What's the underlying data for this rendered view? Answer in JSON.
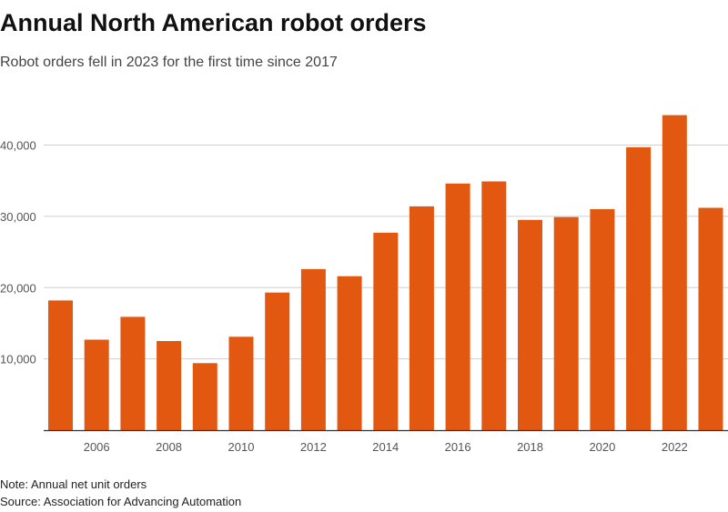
{
  "header": {
    "title": "Annual North American robot orders",
    "subtitle": "Robot orders fell in 2023 for the first time since 2017"
  },
  "footer": {
    "note": "Note: Annual net unit orders",
    "source": "Source: Association for Advancing Automation"
  },
  "colors": {
    "bar": "#E35811",
    "grid": "#cfcfcf",
    "axis": "#333333"
  },
  "chart_data": {
    "type": "bar",
    "title": "Annual North American robot orders",
    "subtitle": "Robot orders fell in 2023 for the first time since 2017",
    "xlabel": "",
    "ylabel": "",
    "categories": [
      2005,
      2006,
      2007,
      2008,
      2009,
      2010,
      2011,
      2012,
      2013,
      2014,
      2015,
      2016,
      2017,
      2018,
      2019,
      2020,
      2021,
      2022,
      2023
    ],
    "values": [
      18200,
      12700,
      15900,
      12500,
      9400,
      13100,
      19300,
      22600,
      21600,
      27700,
      31400,
      34600,
      34900,
      29500,
      29900,
      31000,
      39700,
      44200,
      31200
    ],
    "ylim": [
      0,
      45000
    ],
    "yticks": [
      10000,
      20000,
      30000,
      40000
    ],
    "ytick_labels": [
      "10,000",
      "20,000",
      "30,000",
      "40,000"
    ],
    "xtick_labels": [
      "2006",
      "2008",
      "2010",
      "2012",
      "2014",
      "2016",
      "2018",
      "2020",
      "2022"
    ],
    "grid": true
  }
}
